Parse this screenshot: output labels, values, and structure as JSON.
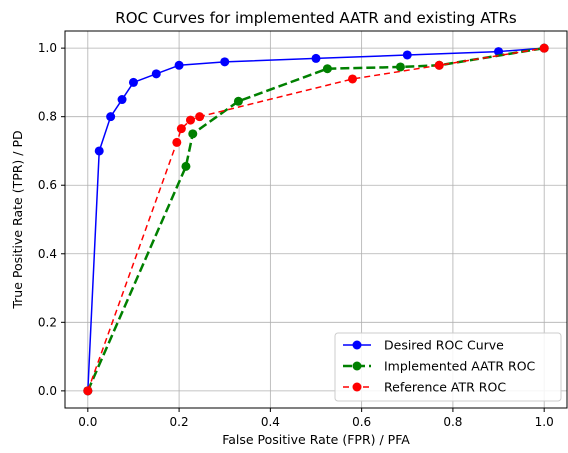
{
  "chart_data": {
    "type": "line",
    "title": "ROC Curves for implemented AATR and existing ATRs",
    "xlabel": "False Positive Rate (FPR) / PFA",
    "ylabel": "True Positive Rate (TPR) / PD",
    "xlim": [
      -0.05,
      1.05
    ],
    "ylim": [
      -0.05,
      1.05
    ],
    "xticks": [
      "0.0",
      "0.2",
      "0.4",
      "0.6",
      "0.8",
      "1.0"
    ],
    "yticks": [
      "0.0",
      "0.2",
      "0.4",
      "0.6",
      "0.8",
      "1.0"
    ],
    "grid": true,
    "legend_position": "lower-right",
    "series": [
      {
        "name": "Desired ROC Curve",
        "color": "#0000ff",
        "style": "solid",
        "x": [
          0.0,
          0.025,
          0.05,
          0.075,
          0.1,
          0.15,
          0.2,
          0.3,
          0.5,
          0.7,
          0.9,
          1.0
        ],
        "y": [
          0.0,
          0.7,
          0.8,
          0.85,
          0.9,
          0.925,
          0.95,
          0.96,
          0.97,
          0.98,
          0.99,
          1.0
        ]
      },
      {
        "name": "Implemented AATR ROC",
        "color": "#008000",
        "style": "dashed-bold",
        "x": [
          0.0,
          0.215,
          0.23,
          0.33,
          0.525,
          0.685,
          0.77,
          1.0
        ],
        "y": [
          0.0,
          0.655,
          0.75,
          0.845,
          0.94,
          0.945,
          0.95,
          1.0
        ]
      },
      {
        "name": "Reference ATR ROC",
        "color": "#ff0000",
        "style": "dashed",
        "x": [
          0.0,
          0.195,
          0.205,
          0.225,
          0.245,
          0.58,
          0.77,
          1.0
        ],
        "y": [
          0.0,
          0.725,
          0.765,
          0.79,
          0.8,
          0.91,
          0.95,
          1.0
        ]
      }
    ]
  }
}
